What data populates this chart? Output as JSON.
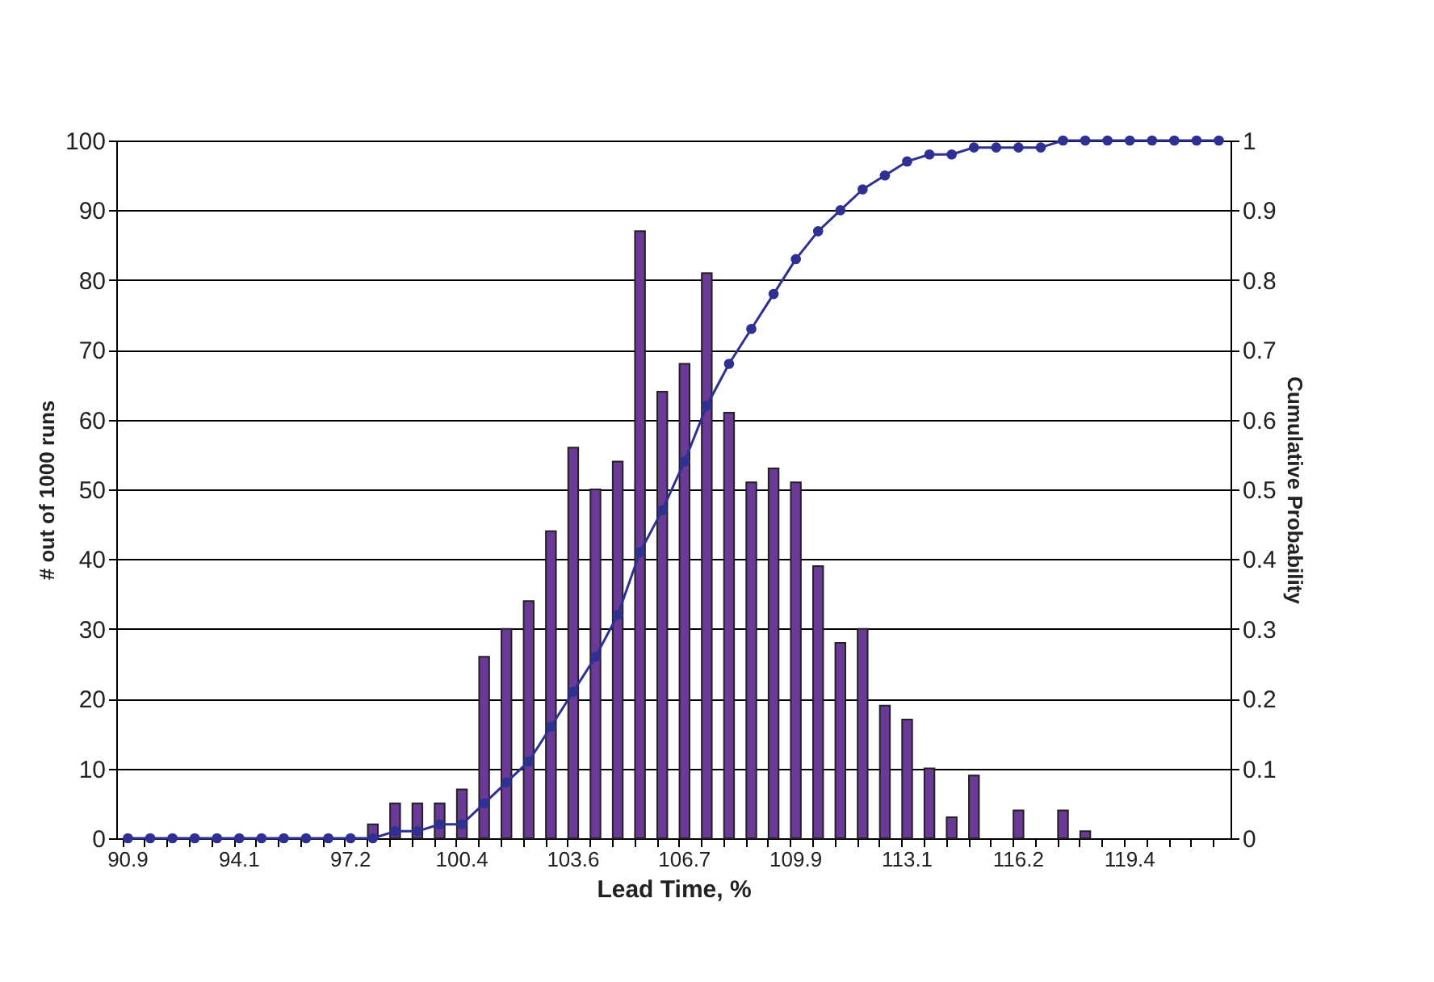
{
  "chart_data": {
    "type": "bar",
    "xlabel": "Lead Time, %",
    "ylabel": "# out of 1000 runs",
    "y2label": "Cumulative Probability",
    "categories": [
      "90.9",
      null,
      null,
      null,
      null,
      "94.1",
      null,
      null,
      null,
      null,
      "97.2",
      null,
      null,
      null,
      null,
      "100.4",
      null,
      null,
      null,
      null,
      "103.6",
      null,
      null,
      null,
      null,
      "106.7",
      null,
      null,
      null,
      null,
      "109.9",
      null,
      null,
      null,
      null,
      "113.1",
      null,
      null,
      null,
      null,
      "116.2",
      null,
      null,
      null,
      null,
      "119.4",
      null,
      null,
      null,
      null
    ],
    "series": [
      {
        "color": "#6b3a96",
        "values": [
          0,
          0,
          0,
          0,
          0,
          0,
          0,
          0,
          0,
          0,
          0,
          2,
          5,
          5,
          5,
          7,
          26,
          30,
          34,
          44,
          56,
          50,
          54,
          87,
          64,
          68,
          81,
          61,
          51,
          53,
          51,
          39,
          28,
          30,
          19,
          17,
          10,
          3,
          9,
          0,
          4,
          0,
          4,
          1,
          0,
          0,
          0,
          0,
          0,
          0
        ]
      },
      {
        "type": "line",
        "axis": "y2",
        "color": "#2e3192",
        "values": [
          0,
          0,
          0,
          0,
          0,
          0,
          0,
          0,
          0,
          0,
          0,
          0,
          0.01,
          0.01,
          0.02,
          0.02,
          0.05,
          0.08,
          0.11,
          0.16,
          0.21,
          0.26,
          0.32,
          0.41,
          0.47,
          0.54,
          0.62,
          0.68,
          0.73,
          0.78,
          0.83,
          0.87,
          0.9,
          0.93,
          0.95,
          0.97,
          0.98,
          0.98,
          0.99,
          0.99,
          0.99,
          0.99,
          1,
          1,
          1,
          1,
          1,
          1,
          1,
          1
        ]
      }
    ],
    "ylim": [
      0,
      100
    ],
    "yticks": [
      0,
      10,
      20,
      30,
      40,
      50,
      60,
      70,
      80,
      90,
      100
    ],
    "y2lim": [
      0,
      1
    ],
    "y2ticks": [
      0,
      0.1,
      0.2,
      0.3,
      0.4,
      0.5,
      0.6,
      0.7,
      0.8,
      0.9,
      1
    ],
    "grid": "y",
    "marker": "circle",
    "line_style": "solid"
  }
}
